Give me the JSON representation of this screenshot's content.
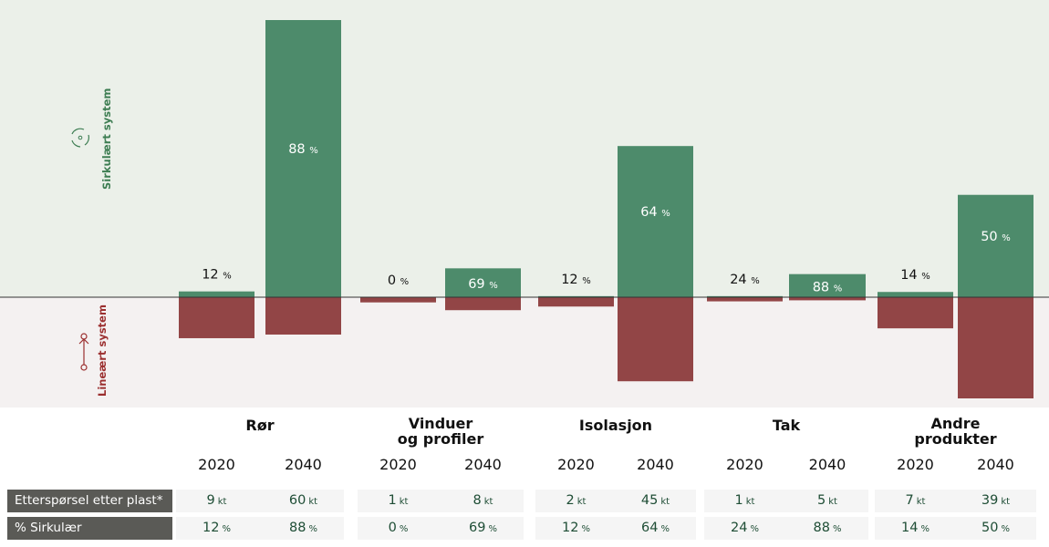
{
  "chart_data": {
    "type": "bar",
    "title": "",
    "xlabel": "",
    "ylabel": "",
    "bands": {
      "upper": {
        "label": "Sirkulært system",
        "icon": "recycle-icon",
        "color": "#3d7d52"
      },
      "lower": {
        "label": "Lineært system",
        "icon": "linear-arrow-icon",
        "color": "#9b2f2f"
      }
    },
    "categories": [
      "Rør",
      "Vinduer og profiler",
      "Isolasjon",
      "Tak",
      "Andre produkter"
    ],
    "category_lines": [
      [
        "Rør"
      ],
      [
        "Vinduer",
        "og profiler"
      ],
      [
        "Isolasjon"
      ],
      [
        "Tak"
      ],
      [
        "Andre",
        "produkter"
      ]
    ],
    "years": [
      "2020",
      "2040"
    ],
    "series": [
      {
        "name": "Sirkulært system (kt)",
        "values": [
          [
            1.1,
            52.8
          ],
          [
            0,
            5.5
          ],
          [
            0.2,
            28.8
          ],
          [
            0.2,
            4.4
          ],
          [
            1.0,
            19.5
          ]
        ]
      },
      {
        "name": "Lineært system (kt)",
        "values": [
          [
            7.9,
            7.2
          ],
          [
            1,
            2.5
          ],
          [
            1.8,
            16.2
          ],
          [
            0.8,
            0.6
          ],
          [
            6.0,
            19.5
          ]
        ]
      }
    ],
    "bar_labels": [
      [
        "12",
        "88"
      ],
      [
        "0",
        "69"
      ],
      [
        "12",
        "64"
      ],
      [
        "24",
        "88"
      ],
      [
        "14",
        "50"
      ]
    ],
    "bar_label_unit": "%",
    "ylim": [
      -19.5,
      52.8
    ]
  },
  "table": {
    "rows": [
      {
        "label": "Etterspørsel etter plast*",
        "unit": "kt",
        "values": [
          [
            "9",
            "60"
          ],
          [
            "1",
            "8"
          ],
          [
            "2",
            "45"
          ],
          [
            "1",
            "5"
          ],
          [
            "7",
            "39"
          ]
        ]
      },
      {
        "label": "% Sirkulær",
        "unit": "%",
        "values": [
          [
            "12",
            "88"
          ],
          [
            "0",
            "69"
          ],
          [
            "12",
            "64"
          ],
          [
            "24",
            "88"
          ],
          [
            "14",
            "50"
          ]
        ]
      }
    ]
  },
  "colors": {
    "upper_bg": "#ebf0e9",
    "lower_bg": "#f4f1f1",
    "green_bar": "#4d8b6b",
    "red_bar": "#924546",
    "axis": "#333333"
  }
}
